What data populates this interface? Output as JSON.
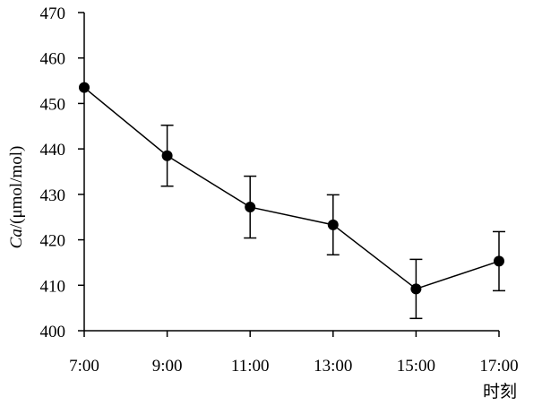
{
  "chart_data": {
    "type": "line",
    "title": "",
    "xlabel": "时刻",
    "ylabel": {
      "italic_part": "Ca",
      "rest": "/(μmol/mol)"
    },
    "x": [
      "7:00",
      "9:00",
      "11:00",
      "13:00",
      "15:00",
      "17:00"
    ],
    "series": [
      {
        "values": [
          453.5,
          438.5,
          427.2,
          423.3,
          409.2,
          415.3
        ],
        "error": [
          null,
          6.7,
          6.8,
          6.6,
          6.5,
          6.5
        ]
      }
    ],
    "ylim": [
      400,
      470
    ],
    "yticks": [
      400,
      410,
      420,
      430,
      440,
      450,
      460,
      470
    ],
    "grid": false,
    "legend": "none",
    "colors": {
      "line": "#000000",
      "marker": "#000000"
    }
  }
}
